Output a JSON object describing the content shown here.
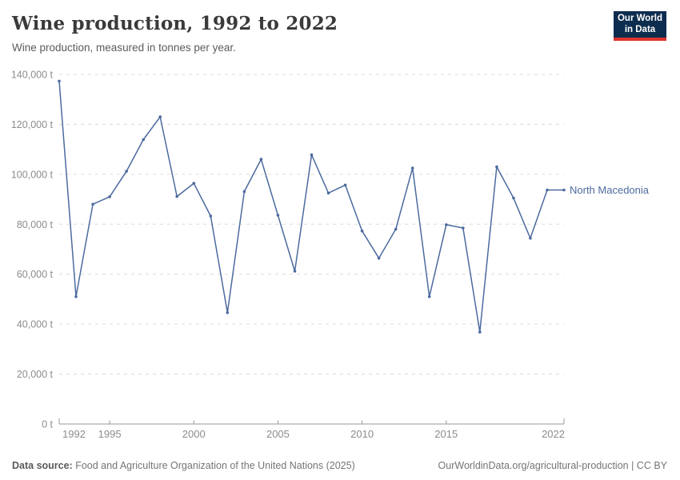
{
  "header": {
    "title": "Wine production, 1992 to 2022",
    "subtitle": "Wine production, measured in tonnes per year.",
    "logo": {
      "line1": "Our World",
      "line2": "in Data",
      "bg_color": "#0d2d4f",
      "bar_color": "#e0342c"
    }
  },
  "chart_data": {
    "type": "line",
    "title": "Wine production, 1992 to 2022",
    "subtitle": "Wine production, measured in tonnes per year.",
    "xlabel": "",
    "ylabel": "Wine production (tonnes per year)",
    "y_unit": "t",
    "xlim": [
      1992,
      2022
    ],
    "ylim": [
      0,
      140000
    ],
    "x_ticks": [
      1992,
      1995,
      2000,
      2005,
      2010,
      2015,
      2022
    ],
    "y_ticks": [
      0,
      20000,
      40000,
      60000,
      80000,
      100000,
      120000,
      140000
    ],
    "grid": "horizontal-dashed",
    "legend_position": "end-of-line-label",
    "series": [
      {
        "name": "North Macedonia",
        "color": "#4c6a9e",
        "x": [
          1992,
          1993,
          1994,
          1995,
          1996,
          1997,
          1998,
          1999,
          2000,
          2001,
          2002,
          2003,
          2004,
          2005,
          2006,
          2007,
          2008,
          2009,
          2010,
          2011,
          2012,
          2013,
          2014,
          2015,
          2016,
          2017,
          2018,
          2019,
          2020,
          2021,
          2022
        ],
        "values": [
          137300,
          51000,
          88000,
          91000,
          101200,
          113900,
          123000,
          91100,
          96400,
          83300,
          44600,
          93100,
          106000,
          83600,
          61200,
          107800,
          92500,
          95700,
          77300,
          66400,
          78000,
          102500,
          51000,
          79800,
          78500,
          36800,
          103000,
          90500,
          74400,
          93700,
          93700
        ]
      }
    ]
  },
  "footer": {
    "source_label": "Data source:",
    "source_text": "Food and Agriculture Organization of the United Nations (2025)",
    "credit": "OurWorldinData.org/agricultural-production | CC BY"
  }
}
